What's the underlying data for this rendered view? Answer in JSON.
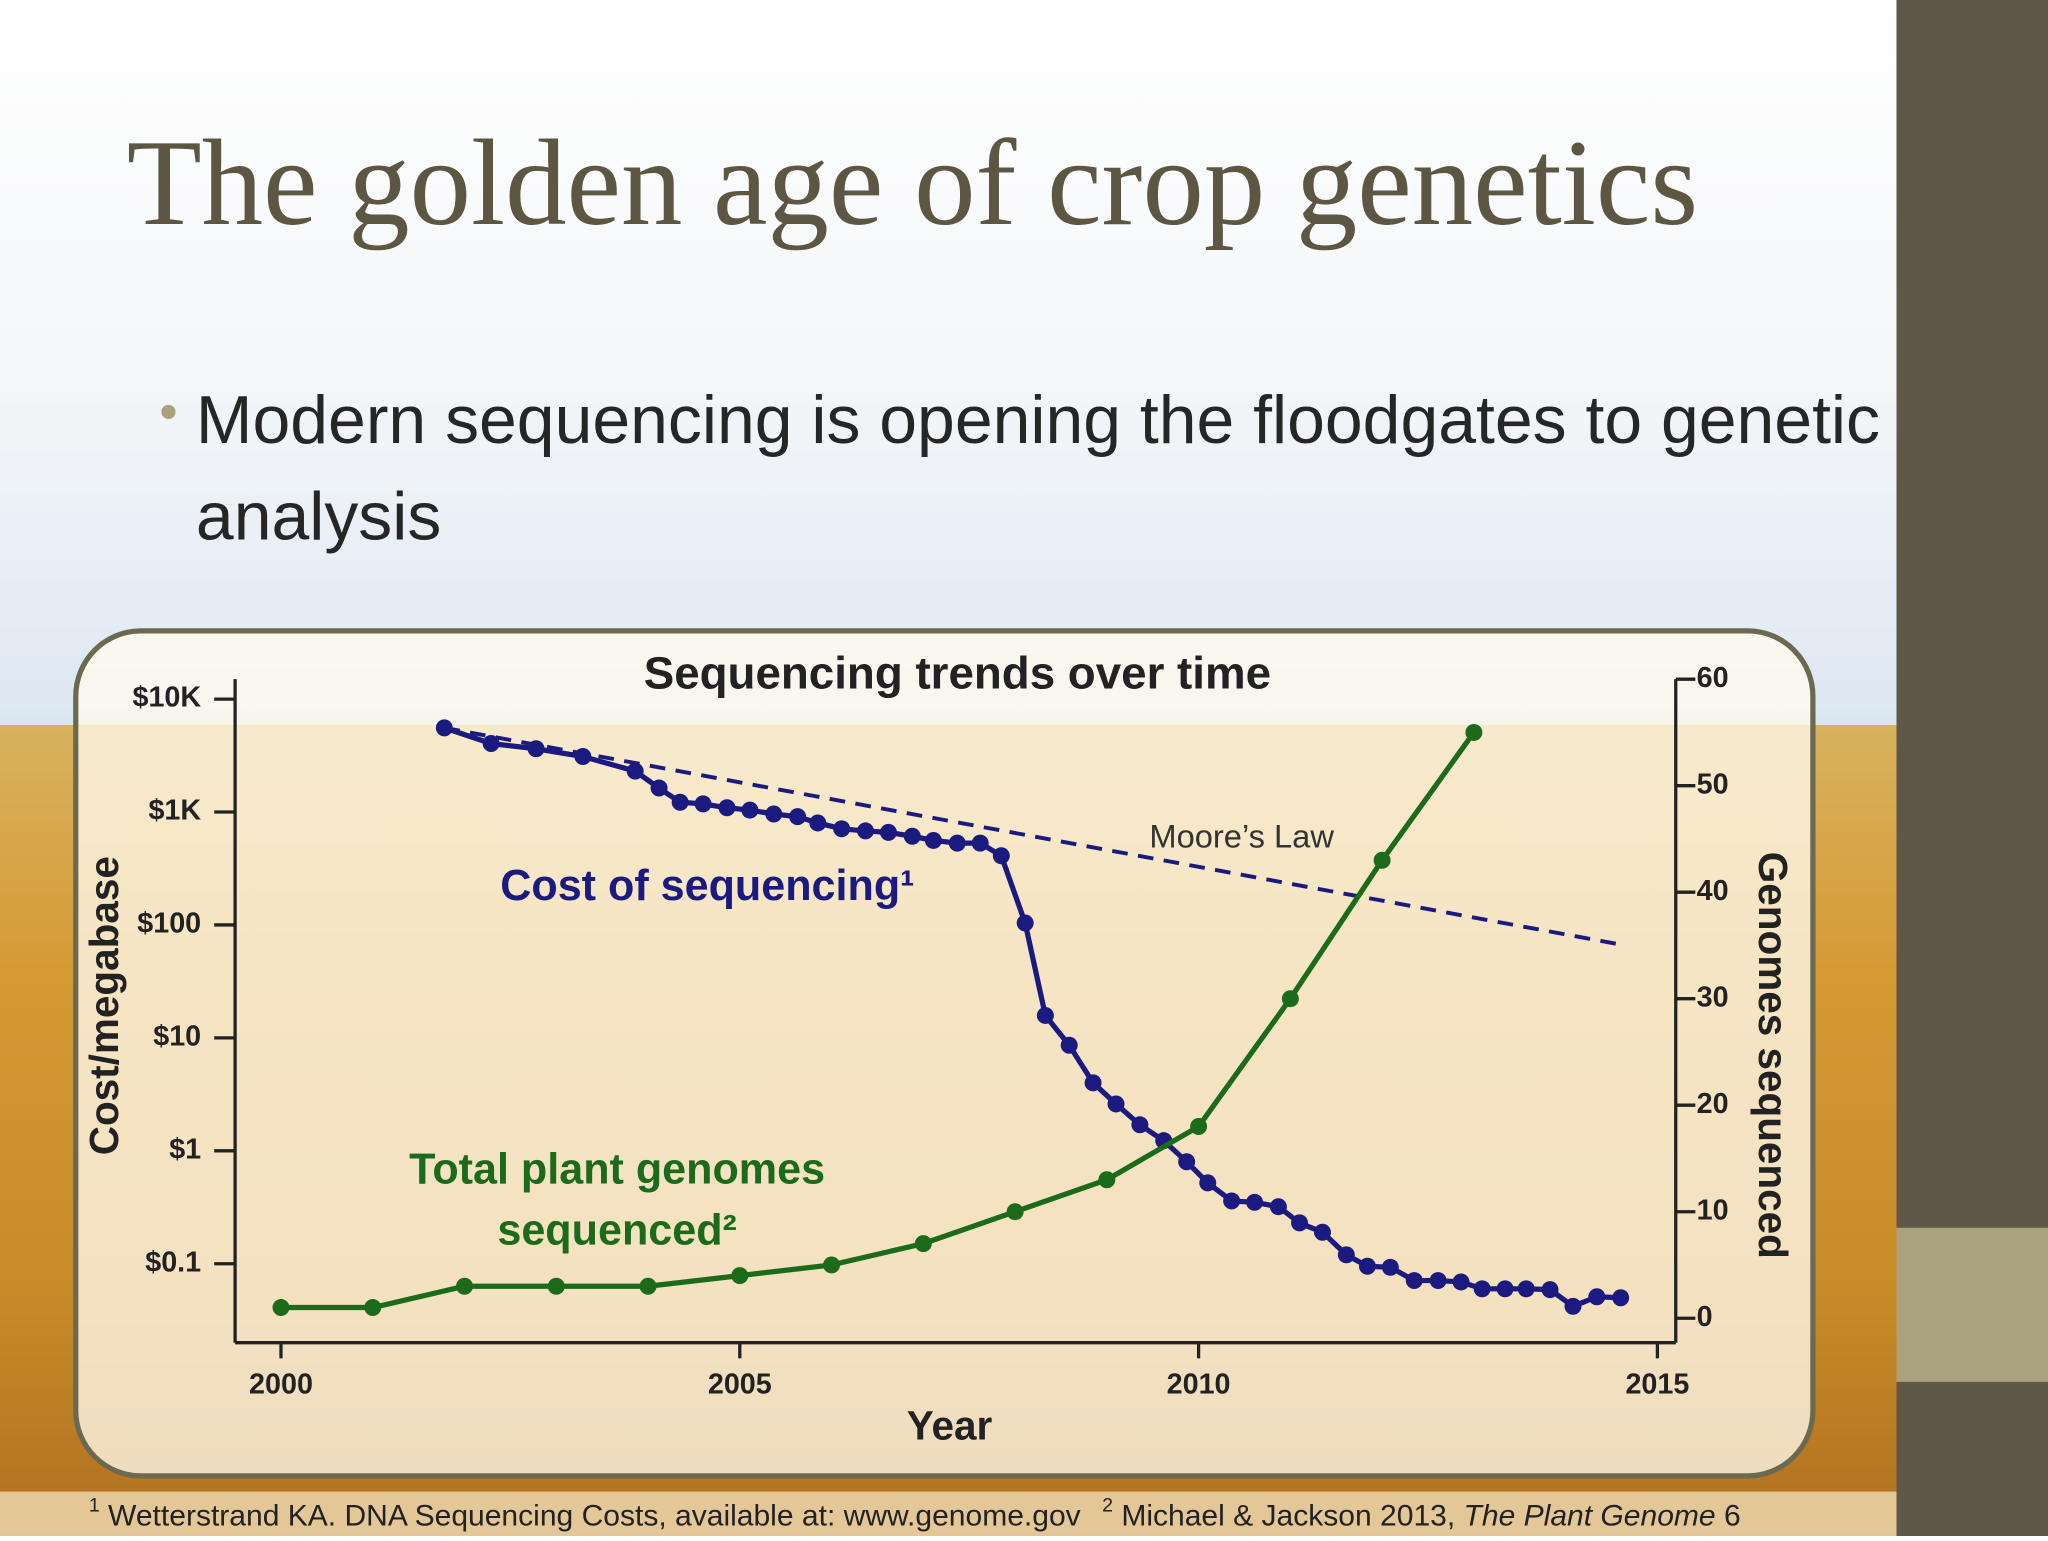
{
  "slide": {
    "title": "The golden age of crop genetics",
    "bullet": "Modern sequencing is opening the floodgates to genetic analysis",
    "footnotes": [
      {
        "marker": "1",
        "text": "Wetterstrand KA. DNA Sequencing Costs, available at: www.genome.gov"
      },
      {
        "marker": "2",
        "text": "Michael & Jackson 2013,",
        "italic": "The Plant Genome",
        "after": "6"
      }
    ]
  },
  "chart_data": {
    "type": "line",
    "title": "Sequencing trends over time",
    "x_label": "Year",
    "y_label": "Cost/megabase",
    "y2_label": "Genomes sequenced",
    "xlim": [
      1999.5,
      2015.2
    ],
    "xticks": [
      2000,
      2005,
      2010,
      2015
    ],
    "ylim": [
      0.02,
      15000
    ],
    "y_log": true,
    "yticks": [
      {
        "value": 0.1,
        "label": "$0.1"
      },
      {
        "value": 1,
        "label": "$1"
      },
      {
        "value": 10,
        "label": "$10"
      },
      {
        "value": 100,
        "label": "$100"
      },
      {
        "value": 1000,
        "label": "$1K"
      },
      {
        "value": 10000,
        "label": "$10K"
      }
    ],
    "y2lim": [
      -2.3,
      60
    ],
    "y2ticks": [
      0,
      10,
      20,
      30,
      40,
      50,
      60
    ],
    "grid": false,
    "series": [
      {
        "name": "Cost of sequencing¹",
        "color": "#1a1a80",
        "markers": true,
        "x": [
          2001.78,
          2002.29,
          2002.78,
          2003.29,
          2003.86,
          2004.12,
          2004.35,
          2004.6,
          2004.86,
          2005.11,
          2005.37,
          2005.63,
          2005.85,
          2006.11,
          2006.37,
          2006.62,
          2006.88,
          2007.11,
          2007.37,
          2007.62,
          2007.85,
          2008.11,
          2008.33,
          2008.59,
          2008.85,
          2009.1,
          2009.36,
          2009.62,
          2009.87,
          2010.1,
          2010.36,
          2010.61,
          2010.87,
          2011.1,
          2011.35,
          2011.61,
          2011.84,
          2012.09,
          2012.35,
          2012.61,
          2012.86,
          2013.09,
          2013.34,
          2013.57,
          2013.83,
          2014.08,
          2014.34,
          2014.6
        ],
        "values": [
          5560,
          4040,
          3630,
          3100,
          2300,
          1630,
          1220,
          1180,
          1090,
          1040,
          960,
          910,
          800,
          710,
          680,
          660,
          610,
          560,
          530,
          530,
          410,
          104,
          15.8,
          8.6,
          4.0,
          2.6,
          1.7,
          1.23,
          0.8,
          0.52,
          0.36,
          0.35,
          0.32,
          0.23,
          0.19,
          0.12,
          0.095,
          0.093,
          0.071,
          0.071,
          0.069,
          0.06,
          0.06,
          0.06,
          0.059,
          0.042,
          0.051,
          0.05
        ]
      },
      {
        "name": "Moore’s Law",
        "color": "#1a1a80",
        "markers": false,
        "dashed": true,
        "x": [
          2001.78,
          2014.6
        ],
        "values": [
          5560,
          67
        ]
      },
      {
        "name": "Total plant genomes sequenced²",
        "color": "#1b6b1b",
        "markers": true,
        "axis": "y2",
        "x": [
          2000,
          2001,
          2002,
          2003,
          2004,
          2005,
          2006,
          2007,
          2008,
          2009,
          2010,
          2011,
          2012,
          2013
        ],
        "values": [
          1,
          1,
          3,
          3,
          3,
          4,
          5,
          7,
          10,
          13,
          18,
          30,
          43,
          55
        ]
      }
    ]
  }
}
